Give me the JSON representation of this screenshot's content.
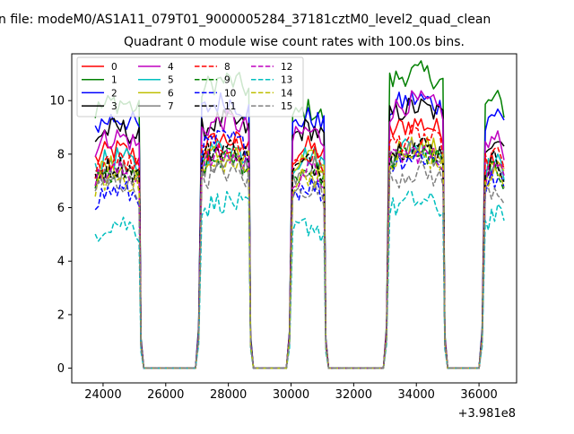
{
  "header": {
    "title_line1": "n file: modeM0/AS1A11_079T01_9000005284_37181cztM0_level2_quad_clean",
    "title_line2": "Quadrant 0 module wise count rates with 100.0s bins."
  },
  "chart_data": {
    "type": "line",
    "title": "Quadrant 0 module wise count rates with 100.0s bins.",
    "xlabel": "",
    "ylabel": "",
    "x_offset_label": "+3.981e8",
    "xlim": [
      23000,
      37200
    ],
    "ylim": [
      -0.55,
      11.75
    ],
    "xticks": [
      24000,
      26000,
      28000,
      30000,
      32000,
      34000,
      36000
    ],
    "xtick_labels": [
      "24000",
      "26000",
      "28000",
      "30000",
      "32000",
      "34000",
      "36000"
    ],
    "yticks": [
      0,
      2,
      4,
      6,
      8,
      10
    ],
    "ytick_labels": [
      "0",
      "2",
      "4",
      "6",
      "8",
      "10"
    ],
    "grid": false,
    "legend_position": "top-left",
    "legend_columns": 4,
    "segments": [
      {
        "x_start": 23750,
        "x_end": 25150,
        "drop_to": 25300
      },
      {
        "x_start": 27150,
        "x_end": 28650,
        "drop_to": 28800,
        "rise_from": 27050
      },
      {
        "x_start": 30050,
        "x_end": 31050,
        "drop_to": 31200,
        "rise_from": 29950
      },
      {
        "x_start": 33150,
        "x_end": 34850,
        "drop_to": 35000,
        "rise_from": 33050
      },
      {
        "x_start": 36200,
        "x_end": 36800,
        "rise_from": 36100
      }
    ],
    "series": [
      {
        "name": "0",
        "color": "#ff0000",
        "dash": "solid",
        "levels": [
          7.8,
          8.2,
          7.9,
          8.8,
          7.6
        ]
      },
      {
        "name": "1",
        "color": "#008000",
        "dash": "solid",
        "levels": [
          9.6,
          10.4,
          9.3,
          10.7,
          9.7
        ]
      },
      {
        "name": "2",
        "color": "#0000ff",
        "dash": "solid",
        "levels": [
          9.0,
          9.6,
          9.0,
          9.7,
          9.2
        ]
      },
      {
        "name": "3",
        "color": "#000000",
        "dash": "solid",
        "levels": [
          8.6,
          8.9,
          8.6,
          9.4,
          8.3
        ]
      },
      {
        "name": "4",
        "color": "#bf00bf",
        "dash": "solid",
        "levels": [
          8.3,
          8.9,
          8.5,
          9.6,
          8.2
        ]
      },
      {
        "name": "5",
        "color": "#00bfbf",
        "dash": "solid",
        "levels": [
          7.5,
          7.9,
          7.6,
          8.0,
          7.3
        ]
      },
      {
        "name": "6",
        "color": "#bfbf00",
        "dash": "solid",
        "levels": [
          7.2,
          7.7,
          7.4,
          8.0,
          7.2
        ]
      },
      {
        "name": "7",
        "color": "#808080",
        "dash": "solid",
        "levels": [
          7.0,
          7.5,
          7.2,
          7.8,
          7.0
        ]
      },
      {
        "name": "8",
        "color": "#ff0000",
        "dash": "dashed",
        "levels": [
          7.4,
          8.0,
          7.6,
          8.3,
          7.6
        ]
      },
      {
        "name": "9",
        "color": "#008000",
        "dash": "dashed",
        "levels": [
          6.9,
          7.5,
          7.1,
          7.7,
          7.0
        ]
      },
      {
        "name": "10",
        "color": "#0000ff",
        "dash": "dashed",
        "levels": [
          6.3,
          8.2,
          6.5,
          7.6,
          6.7
        ]
      },
      {
        "name": "11",
        "color": "#000000",
        "dash": "dashed",
        "levels": [
          7.2,
          7.9,
          7.3,
          8.0,
          7.4
        ]
      },
      {
        "name": "12",
        "color": "#bf00bf",
        "dash": "dashed",
        "levels": [
          7.0,
          7.6,
          7.0,
          7.7,
          7.1
        ]
      },
      {
        "name": "13",
        "color": "#00bfbf",
        "dash": "dashed",
        "levels": [
          5.1,
          5.9,
          5.0,
          5.9,
          5.4
        ]
      },
      {
        "name": "14",
        "color": "#bfbf00",
        "dash": "dashed",
        "levels": [
          6.8,
          7.3,
          6.9,
          7.6,
          6.9
        ]
      },
      {
        "name": "15",
        "color": "#808080",
        "dash": "dashed",
        "levels": [
          6.6,
          7.0,
          6.4,
          7.0,
          6.4
        ]
      }
    ]
  }
}
